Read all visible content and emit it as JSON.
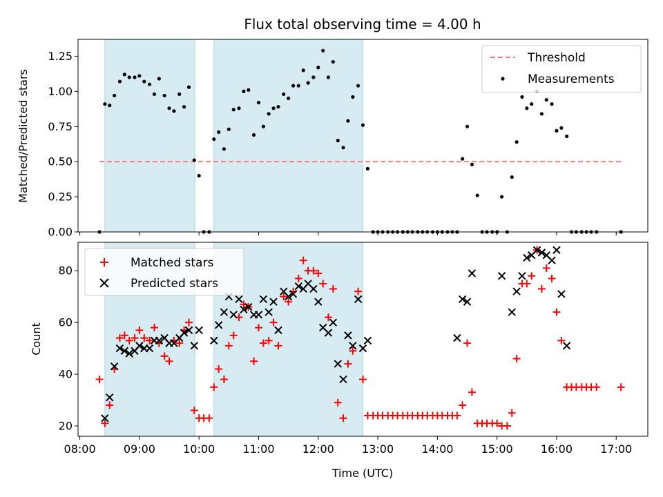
{
  "chart_data": {
    "type": "scatter",
    "title": "Flux total observing time = 4.00 h",
    "xlabel": "Time (UTC)",
    "x_ticks": [
      "08:00",
      "09:00",
      "10:00",
      "11:00",
      "12:00",
      "13:00",
      "14:00",
      "15:00",
      "16:00",
      "17:00"
    ],
    "xlim_hours": [
      7.97,
      17.53
    ],
    "shaded_intervals": [
      [
        8.42,
        9.93
      ],
      [
        10.25,
        12.75
      ]
    ],
    "panels": [
      {
        "ylabel": "Matched/Predicted stars",
        "ylim": [
          0,
          1.37
        ],
        "y_ticks": [
          "0.00",
          "0.25",
          "0.50",
          "0.75",
          "1.00",
          "1.25"
        ],
        "y_tick_values": [
          0,
          0.25,
          0.5,
          0.75,
          1.0,
          1.25
        ],
        "threshold": {
          "name": "Threshold",
          "value": 0.5,
          "x_range": [
            8.33,
            17.08
          ],
          "color": "#f08080"
        },
        "legend": {
          "position": "upper right",
          "entries": [
            "Threshold",
            "Measurements"
          ]
        },
        "series": [
          {
            "name": "Measurements",
            "marker": "dot",
            "color": "#000000",
            "x": [
              8.33,
              8.42,
              8.5,
              8.58,
              8.67,
              8.75,
              8.83,
              8.92,
              9.0,
              9.08,
              9.17,
              9.25,
              9.33,
              9.42,
              9.5,
              9.58,
              9.67,
              9.75,
              9.83,
              9.92,
              10.0,
              10.08,
              10.17,
              10.25,
              10.33,
              10.42,
              10.5,
              10.58,
              10.67,
              10.75,
              10.83,
              10.92,
              11.0,
              11.08,
              11.17,
              11.25,
              11.33,
              11.42,
              11.5,
              11.58,
              11.67,
              11.75,
              11.83,
              11.92,
              12.0,
              12.08,
              12.17,
              12.25,
              12.33,
              12.42,
              12.5,
              12.58,
              12.67,
              12.75,
              12.83,
              12.92,
              13.0,
              13.08,
              13.17,
              13.25,
              13.33,
              13.42,
              13.5,
              13.58,
              13.67,
              13.75,
              13.83,
              13.92,
              14.0,
              14.08,
              14.17,
              14.25,
              14.33,
              14.42,
              14.5,
              14.58,
              14.67,
              14.75,
              14.83,
              14.92,
              15.0,
              15.08,
              15.17,
              15.25,
              15.33,
              15.42,
              15.5,
              15.58,
              15.67,
              15.75,
              15.83,
              15.92,
              16.0,
              16.08,
              16.17,
              16.25,
              16.33,
              16.42,
              16.5,
              16.58,
              16.67,
              17.08
            ],
            "y": [
              0.0,
              0.91,
              0.9,
              0.97,
              1.07,
              1.12,
              1.1,
              1.1,
              1.11,
              1.07,
              1.05,
              0.98,
              1.09,
              0.97,
              0.88,
              0.86,
              0.98,
              0.89,
              1.03,
              0.51,
              0.4,
              0.0,
              0.0,
              0.66,
              0.71,
              0.59,
              0.73,
              0.87,
              0.88,
              1.0,
              1.01,
              0.69,
              0.92,
              0.75,
              0.84,
              0.88,
              0.89,
              0.98,
              0.95,
              1.04,
              1.04,
              1.15,
              1.06,
              1.1,
              1.17,
              1.29,
              1.1,
              1.21,
              0.65,
              0.6,
              0.79,
              0.96,
              1.04,
              0.76,
              0.45,
              0.0,
              0.0,
              0.0,
              0.0,
              0.0,
              0.0,
              0.0,
              0.0,
              0.0,
              0.0,
              0.0,
              0.0,
              0.0,
              0.0,
              0.0,
              0.0,
              0.0,
              0.0,
              0.52,
              0.75,
              0.48,
              0.26,
              0.0,
              0.0,
              0.0,
              0.0,
              0.25,
              0.0,
              0.39,
              0.64,
              0.96,
              0.88,
              0.91,
              1.0,
              0.84,
              0.94,
              0.91,
              0.72,
              0.74,
              0.68,
              0.0,
              0.0,
              0.0,
              0.0,
              0.0,
              0.0,
              0.0
            ]
          }
        ]
      },
      {
        "ylabel": "Count",
        "ylim": [
          16,
          91
        ],
        "y_ticks": [
          "20",
          "40",
          "60",
          "80"
        ],
        "y_tick_values": [
          20,
          40,
          60,
          80
        ],
        "legend": {
          "position": "upper left",
          "entries": [
            "Matched stars",
            "Predicted stars"
          ]
        },
        "series": [
          {
            "name": "Matched stars",
            "marker": "plus",
            "color": "#ff0000",
            "x": [
              8.33,
              8.42,
              8.5,
              8.58,
              8.67,
              8.75,
              8.83,
              8.92,
              9.0,
              9.08,
              9.17,
              9.25,
              9.33,
              9.42,
              9.5,
              9.58,
              9.67,
              9.75,
              9.83,
              9.92,
              10.0,
              10.08,
              10.17,
              10.25,
              10.33,
              10.42,
              10.5,
              10.58,
              10.67,
              10.75,
              10.83,
              10.92,
              11.0,
              11.08,
              11.17,
              11.25,
              11.33,
              11.42,
              11.5,
              11.58,
              11.67,
              11.75,
              11.83,
              11.92,
              12.0,
              12.08,
              12.17,
              12.25,
              12.33,
              12.42,
              12.5,
              12.58,
              12.67,
              12.75,
              12.83,
              12.92,
              13.0,
              13.08,
              13.17,
              13.25,
              13.33,
              13.42,
              13.5,
              13.58,
              13.67,
              13.75,
              13.83,
              13.92,
              14.0,
              14.08,
              14.17,
              14.25,
              14.33,
              14.42,
              14.5,
              14.58,
              14.67,
              14.75,
              14.83,
              14.92,
              15.0,
              15.08,
              15.17,
              15.25,
              15.33,
              15.42,
              15.5,
              15.58,
              15.67,
              15.75,
              15.83,
              15.92,
              16.0,
              16.08,
              16.17,
              16.25,
              16.33,
              16.42,
              16.5,
              16.58,
              16.67,
              17.08
            ],
            "y": [
              38,
              21,
              28,
              42,
              54,
              55,
              53,
              54,
              57,
              54,
              53,
              58,
              52,
              47,
              45,
              53,
              52,
              57,
              60,
              26,
              23,
              23,
              23,
              35,
              42,
              38,
              51,
              55,
              62,
              67,
              66,
              45,
              58,
              52,
              53,
              60,
              51,
              70,
              68,
              72,
              77,
              84,
              80,
              80,
              79,
              75,
              62,
              73,
              29,
              23,
              44,
              49,
              72,
              38,
              24,
              24,
              24,
              24,
              24,
              24,
              24,
              24,
              24,
              24,
              24,
              24,
              24,
              24,
              24,
              24,
              24,
              24,
              24,
              28,
              52,
              33,
              21,
              21,
              21,
              21,
              21,
              20,
              20,
              25,
              46,
              75,
              75,
              78,
              88,
              73,
              81,
              77,
              64,
              53,
              35,
              35,
              35,
              35,
              35,
              35,
              35,
              35
            ]
          },
          {
            "name": "Predicted stars",
            "marker": "cross",
            "color": "#000000",
            "x": [
              8.42,
              8.5,
              8.58,
              8.67,
              8.75,
              8.83,
              8.92,
              9.0,
              9.08,
              9.17,
              9.25,
              9.33,
              9.42,
              9.5,
              9.58,
              9.67,
              9.75,
              9.83,
              9.92,
              10.0,
              10.25,
              10.33,
              10.42,
              10.5,
              10.58,
              10.67,
              10.75,
              10.83,
              10.92,
              11.0,
              11.08,
              11.17,
              11.25,
              11.33,
              11.42,
              11.5,
              11.58,
              11.67,
              11.75,
              11.83,
              11.92,
              12.0,
              12.08,
              12.17,
              12.25,
              12.33,
              12.42,
              12.5,
              12.58,
              12.67,
              12.75,
              12.83,
              14.33,
              14.42,
              14.5,
              14.58,
              15.08,
              15.25,
              15.33,
              15.42,
              15.5,
              15.58,
              15.67,
              15.75,
              15.83,
              15.92,
              16.0,
              16.08,
              16.17
            ],
            "y": [
              23,
              31,
              43,
              50,
              49,
              48,
              49,
              51,
              50,
              50,
              53,
              53,
              54,
              52,
              52,
              54,
              56,
              57,
              51,
              57,
              53,
              59,
              64,
              70,
              63,
              69,
              65,
              66,
              63,
              63,
              69,
              64,
              68,
              57,
              72,
              70,
              71,
              74,
              73,
              75,
              73,
              68,
              58,
              56,
              60,
              44,
              38,
              55,
              51,
              69,
              50,
              53,
              54,
              69,
              68,
              79,
              78,
              64,
              72,
              78,
              85,
              86,
              88,
              87,
              86,
              84,
              88,
              71,
              51
            ]
          }
        ]
      }
    ]
  }
}
